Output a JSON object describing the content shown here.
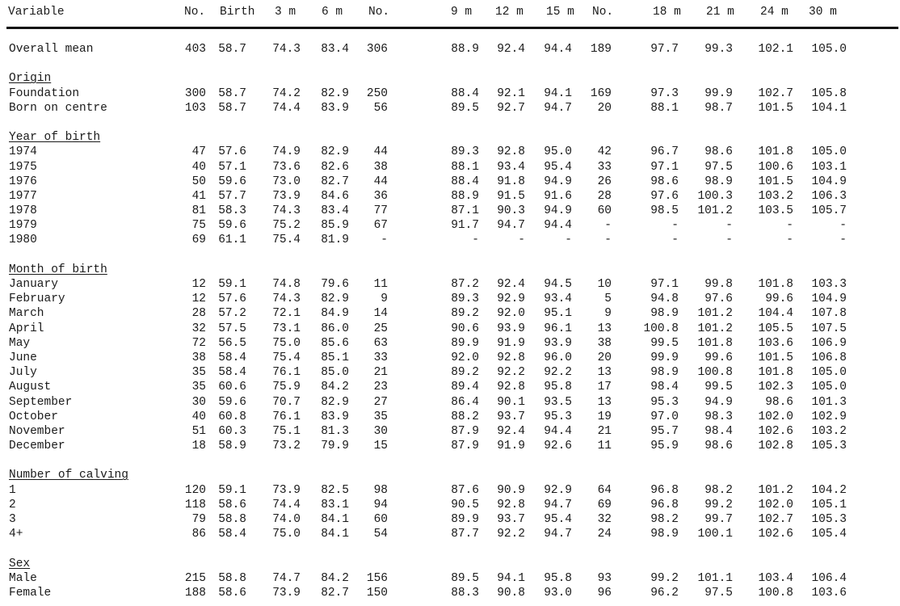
{
  "table": {
    "headers": [
      "Variable",
      "No.",
      "Birth",
      "3 m",
      "6 m",
      "No.",
      "9 m",
      "12 m",
      "15 m",
      "No.",
      "18 m",
      "21 m",
      "24 m",
      "30 m"
    ],
    "groups": [
      {
        "title": "",
        "rows": [
          {
            "label": "Overall mean",
            "values": [
              "403",
              "58.7",
              "74.3",
              "83.4",
              "306",
              "88.9",
              "92.4",
              "94.4",
              "189",
              "97.7",
              "99.3",
              "102.1",
              "105.0"
            ]
          }
        ]
      },
      {
        "title": "Origin",
        "rows": [
          {
            "label": "Foundation",
            "values": [
              "300",
              "58.7",
              "74.2",
              "82.9",
              "250",
              "88.4",
              "92.1",
              "94.1",
              "169",
              "97.3",
              "99.9",
              "102.7",
              "105.8"
            ]
          },
          {
            "label": "Born on centre",
            "values": [
              "103",
              "58.7",
              "74.4",
              "83.9",
              "56",
              "89.5",
              "92.7",
              "94.7",
              "20",
              "88.1",
              "98.7",
              "101.5",
              "104.1"
            ]
          }
        ]
      },
      {
        "title": "Year of birth",
        "rows": [
          {
            "label": "1974",
            "values": [
              "47",
              "57.6",
              "74.9",
              "82.9",
              "44",
              "89.3",
              "92.8",
              "95.0",
              "42",
              "96.7",
              "98.6",
              "101.8",
              "105.0"
            ]
          },
          {
            "label": "1975",
            "values": [
              "40",
              "57.1",
              "73.6",
              "82.6",
              "38",
              "88.1",
              "93.4",
              "95.4",
              "33",
              "97.1",
              "97.5",
              "100.6",
              "103.1"
            ]
          },
          {
            "label": "1976",
            "values": [
              "50",
              "59.6",
              "73.0",
              "82.7",
              "44",
              "88.4",
              "91.8",
              "94.9",
              "26",
              "98.6",
              "98.9",
              "101.5",
              "104.9"
            ]
          },
          {
            "label": "1977",
            "values": [
              "41",
              "57.7",
              "73.9",
              "84.6",
              "36",
              "88.9",
              "91.5",
              "91.6",
              "28",
              "97.6",
              "100.3",
              "103.2",
              "106.3"
            ]
          },
          {
            "label": "1978",
            "values": [
              "81",
              "58.3",
              "74.3",
              "83.4",
              "77",
              "87.1",
              "90.3",
              "94.9",
              "60",
              "98.5",
              "101.2",
              "103.5",
              "105.7"
            ]
          },
          {
            "label": "1979",
            "values": [
              "75",
              "59.6",
              "75.2",
              "85.9",
              "67",
              "91.7",
              "94.7",
              "94.4",
              "-",
              "-",
              "-",
              "-",
              "-"
            ]
          },
          {
            "label": "1980",
            "values": [
              "69",
              "61.1",
              "75.4",
              "81.9",
              "-",
              "-",
              "-",
              "-",
              "-",
              "-",
              "-",
              "-",
              "-"
            ]
          }
        ]
      },
      {
        "title": "Month of birth",
        "rows": [
          {
            "label": "January",
            "values": [
              "12",
              "59.1",
              "74.8",
              "79.6",
              "11",
              "87.2",
              "92.4",
              "94.5",
              "10",
              "97.1",
              "99.8",
              "101.8",
              "103.3"
            ]
          },
          {
            "label": "February",
            "values": [
              "12",
              "57.6",
              "74.3",
              "82.9",
              "9",
              "89.3",
              "92.9",
              "93.4",
              "5",
              "94.8",
              "97.6",
              "99.6",
              "104.9"
            ]
          },
          {
            "label": "March",
            "values": [
              "28",
              "57.2",
              "72.1",
              "84.9",
              "14",
              "89.2",
              "92.0",
              "95.1",
              "9",
              "98.9",
              "101.2",
              "104.4",
              "107.8"
            ]
          },
          {
            "label": "April",
            "values": [
              "32",
              "57.5",
              "73.1",
              "86.0",
              "25",
              "90.6",
              "93.9",
              "96.1",
              "13",
              "100.8",
              "101.2",
              "105.5",
              "107.5"
            ]
          },
          {
            "label": "May",
            "values": [
              "72",
              "56.5",
              "75.0",
              "85.6",
              "63",
              "89.9",
              "91.9",
              "93.9",
              "38",
              "99.5",
              "101.8",
              "103.6",
              "106.9"
            ]
          },
          {
            "label": "June",
            "values": [
              "38",
              "58.4",
              "75.4",
              "85.1",
              "33",
              "92.0",
              "92.8",
              "96.0",
              "20",
              "99.9",
              "99.6",
              "101.5",
              "106.8"
            ]
          },
          {
            "label": "July",
            "values": [
              "35",
              "58.4",
              "76.1",
              "85.0",
              "21",
              "89.2",
              "92.2",
              "92.2",
              "13",
              "98.9",
              "100.8",
              "101.8",
              "105.0"
            ]
          },
          {
            "label": "August",
            "values": [
              "35",
              "60.6",
              "75.9",
              "84.2",
              "23",
              "89.4",
              "92.8",
              "95.8",
              "17",
              "98.4",
              "99.5",
              "102.3",
              "105.0"
            ]
          },
          {
            "label": "September",
            "values": [
              "30",
              "59.6",
              "70.7",
              "82.9",
              "27",
              "86.4",
              "90.1",
              "93.5",
              "13",
              "95.3",
              "94.9",
              "98.6",
              "101.3"
            ]
          },
          {
            "label": "October",
            "values": [
              "40",
              "60.8",
              "76.1",
              "83.9",
              "35",
              "88.2",
              "93.7",
              "95.3",
              "19",
              "97.0",
              "98.3",
              "102.0",
              "102.9"
            ]
          },
          {
            "label": "November",
            "values": [
              "51",
              "60.3",
              "75.1",
              "81.3",
              "30",
              "87.9",
              "92.4",
              "94.4",
              "21",
              "95.7",
              "98.4",
              "102.6",
              "103.2"
            ]
          },
          {
            "label": "December",
            "values": [
              "18",
              "58.9",
              "73.2",
              "79.9",
              "15",
              "87.9",
              "91.9",
              "92.6",
              "11",
              "95.9",
              "98.6",
              "102.8",
              "105.3"
            ]
          }
        ]
      },
      {
        "title": "Number of calving",
        "rows": [
          {
            "label": "1",
            "values": [
              "120",
              "59.1",
              "73.9",
              "82.5",
              "98",
              "87.6",
              "90.9",
              "92.9",
              "64",
              "96.8",
              "98.2",
              "101.2",
              "104.2"
            ]
          },
          {
            "label": "2",
            "values": [
              "118",
              "58.6",
              "74.4",
              "83.1",
              "94",
              "90.5",
              "92.8",
              "94.7",
              "69",
              "96.8",
              "99.2",
              "102.0",
              "105.1"
            ]
          },
          {
            "label": "3",
            "values": [
              "79",
              "58.8",
              "74.0",
              "84.1",
              "60",
              "89.9",
              "93.7",
              "95.4",
              "32",
              "98.2",
              "99.7",
              "102.7",
              "105.3"
            ]
          },
          {
            "label": "4+",
            "values": [
              "86",
              "58.4",
              "75.0",
              "84.1",
              "54",
              "87.7",
              "92.2",
              "94.7",
              "24",
              "98.9",
              "100.1",
              "102.6",
              "105.4"
            ]
          }
        ]
      },
      {
        "title": "Sex",
        "rows": [
          {
            "label": "Male",
            "values": [
              "215",
              "58.8",
              "74.7",
              "84.2",
              "156",
              "89.5",
              "94.1",
              "95.8",
              "93",
              "99.2",
              "101.1",
              "103.4",
              "106.4"
            ]
          },
          {
            "label": "Female",
            "values": [
              "188",
              "58.6",
              "73.9",
              "82.7",
              "150",
              "88.3",
              "90.8",
              "93.0",
              "96",
              "96.2",
              "97.5",
              "100.8",
              "103.6"
            ]
          }
        ]
      }
    ]
  }
}
